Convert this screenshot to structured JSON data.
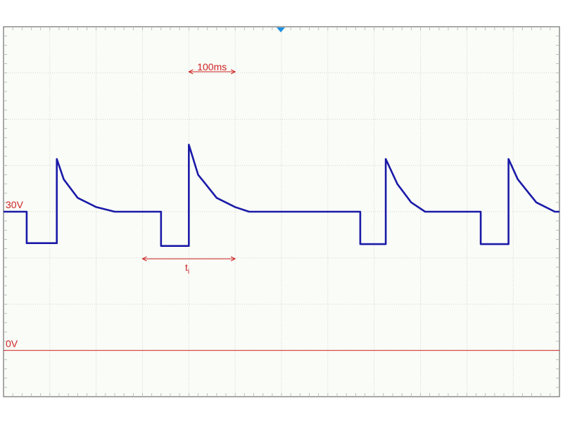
{
  "chart_data": {
    "type": "line",
    "title": "",
    "xlabel": "",
    "ylabel": "",
    "divisions": {
      "x": 12,
      "y": 8
    },
    "time_per_div_ms": 100,
    "volts_per_div": 10,
    "x_range_ms": [
      0,
      1200
    ],
    "y_range_v": [
      -10,
      70
    ],
    "grid": true,
    "series": [
      {
        "color": "#1a1aa8",
        "x": [
          0,
          50,
          50,
          115,
          115,
          130,
          160,
          200,
          240,
          340,
          340,
          400,
          400,
          420,
          460,
          500,
          530,
          560,
          600,
          640,
          690,
          770,
          770,
          825,
          825,
          850,
          880,
          910,
          1030,
          1030,
          1090,
          1090,
          1110,
          1150,
          1190,
          1200
        ],
        "y": [
          30,
          30,
          23.2,
          23.2,
          41.4,
          37,
          33,
          31,
          30,
          30,
          22.6,
          22.6,
          44.5,
          38,
          33,
          31,
          30,
          30,
          30,
          30,
          30,
          30,
          23,
          23,
          41.4,
          36,
          32,
          30,
          30,
          23,
          23,
          41.4,
          37,
          32,
          30,
          30
        ]
      }
    ],
    "annotations": [
      {
        "text": "30V",
        "type": "level-marker",
        "value_v": 30
      },
      {
        "text": "0V",
        "type": "level-marker",
        "value_v": 0
      },
      {
        "text": "100ms",
        "type": "span",
        "x_start_ms": 400,
        "x_end_ms": 500
      },
      {
        "text": "t",
        "sub": "i",
        "type": "span",
        "x_start_ms": 300,
        "x_end_ms": 500
      }
    ]
  }
}
